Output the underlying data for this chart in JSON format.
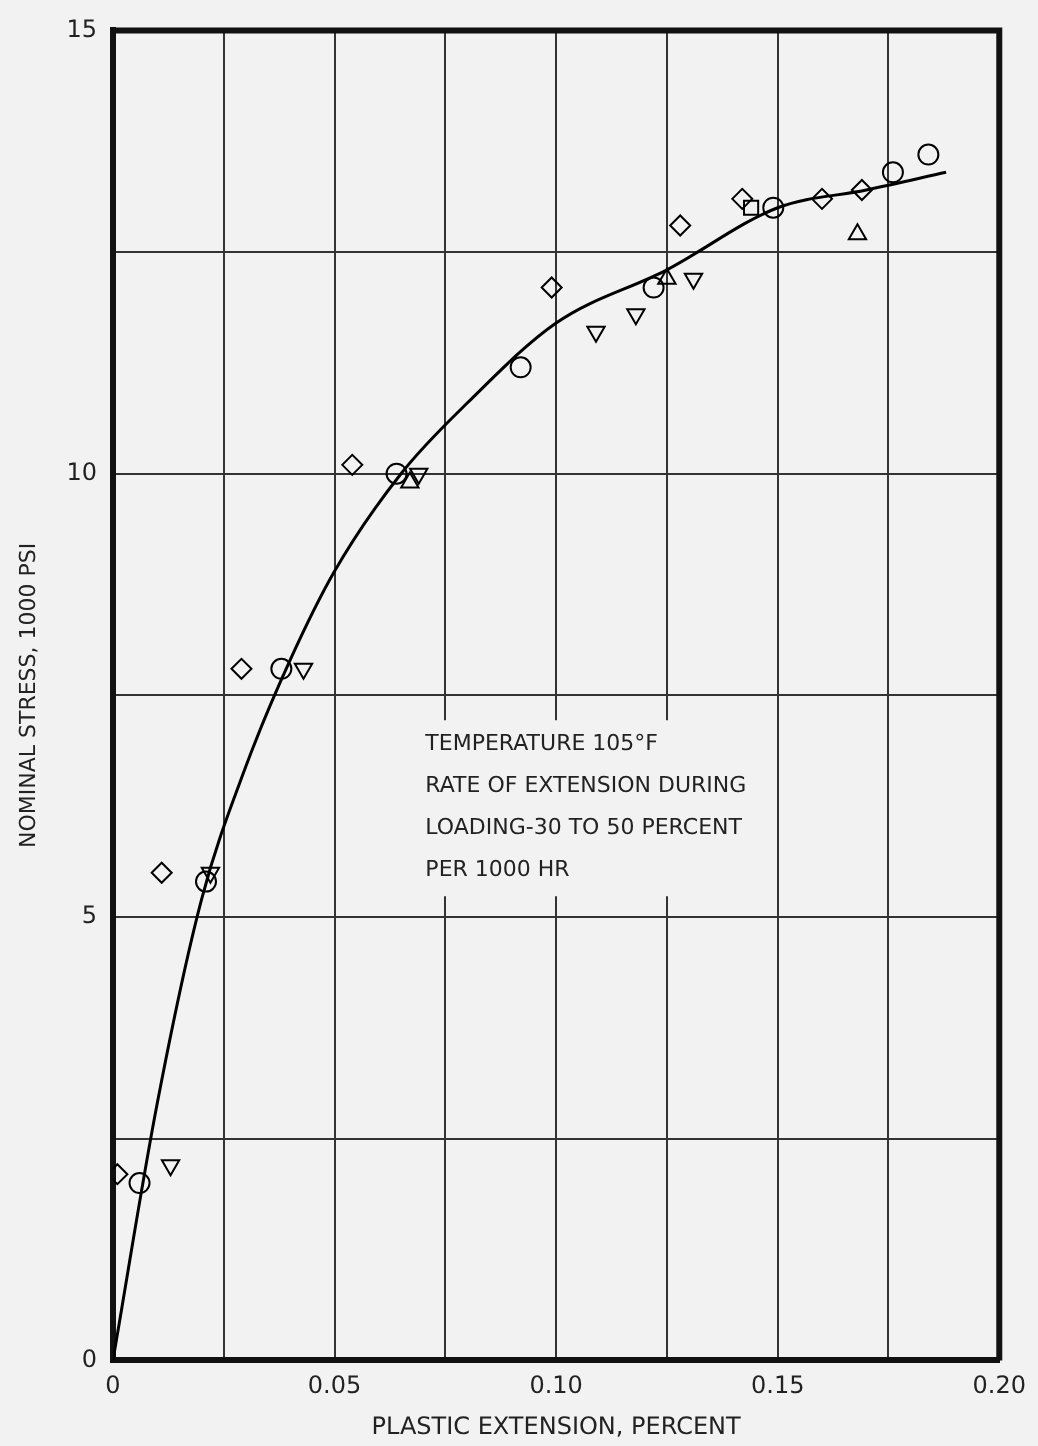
{
  "chart_data": {
    "type": "scatter",
    "xlabel": "PLASTIC EXTENSION, PERCENT",
    "ylabel": "NOMINAL STRESS, 1000 PSI",
    "xlim": [
      0,
      0.2
    ],
    "ylim": [
      0,
      15
    ],
    "xticks": [
      0,
      {
        "value": 0.025,
        "label": null
      },
      0.05,
      {
        "value": 0.075,
        "label": null
      },
      {
        "value": 0.1,
        "label": "0.10"
      },
      {
        "value": 0.125,
        "label": null
      },
      0.15,
      {
        "value": 0.175,
        "label": null
      },
      {
        "value": 0.2,
        "label": "0.20"
      }
    ],
    "yticks": [
      0,
      {
        "value": 2.5,
        "label": null
      },
      5,
      {
        "value": 7.5,
        "label": null
      },
      10,
      {
        "value": 12.5,
        "label": null
      },
      15
    ],
    "grid": true,
    "legend": false,
    "annotations": [
      "TEMPERATURE 105°F",
      "RATE OF EXTENSION DURING",
      "LOADING-30 TO 50 PERCENT",
      "PER 1000 HR"
    ],
    "series": [
      {
        "marker": "diamond",
        "color": "#000000",
        "x": [
          0.001,
          0.011,
          0.029,
          0.054,
          0.099,
          0.128,
          0.142,
          0.16,
          0.169
        ],
        "values": [
          2.1,
          5.5,
          7.8,
          10.1,
          12.1,
          12.8,
          13.1,
          13.1,
          13.2
        ]
      },
      {
        "marker": "circle",
        "color": "#000000",
        "x": [
          0.006,
          0.021,
          0.038,
          0.064,
          0.092,
          0.122,
          0.149,
          0.176,
          0.184
        ],
        "values": [
          2.0,
          5.4,
          7.8,
          10.0,
          11.2,
          12.1,
          13.0,
          13.4,
          13.6
        ]
      },
      {
        "marker": "triangle_down",
        "color": "#000000",
        "x": [
          0.013,
          0.022,
          0.043,
          0.069,
          0.109,
          0.118,
          0.131
        ],
        "values": [
          2.2,
          5.5,
          7.8,
          10.0,
          11.6,
          11.8,
          12.2
        ]
      },
      {
        "marker": "triangle",
        "color": "#000000",
        "x": [
          0.067,
          0.125,
          0.168
        ],
        "values": [
          9.9,
          12.2,
          12.7
        ]
      },
      {
        "marker": "square",
        "color": "#000000",
        "x": [
          0.144
        ],
        "values": [
          13.0
        ]
      },
      {
        "type": "line",
        "marker": "none",
        "color": "#000000",
        "x": [
          0,
          0.01,
          0.02,
          0.03,
          0.04,
          0.05,
          0.065,
          0.08,
          0.1,
          0.125,
          0.15,
          0.17,
          0.188
        ],
        "values": [
          0,
          2.9,
          5.2,
          6.7,
          7.9,
          8.9,
          10.0,
          10.8,
          11.7,
          12.3,
          13.0,
          13.2,
          13.4
        ]
      }
    ]
  }
}
